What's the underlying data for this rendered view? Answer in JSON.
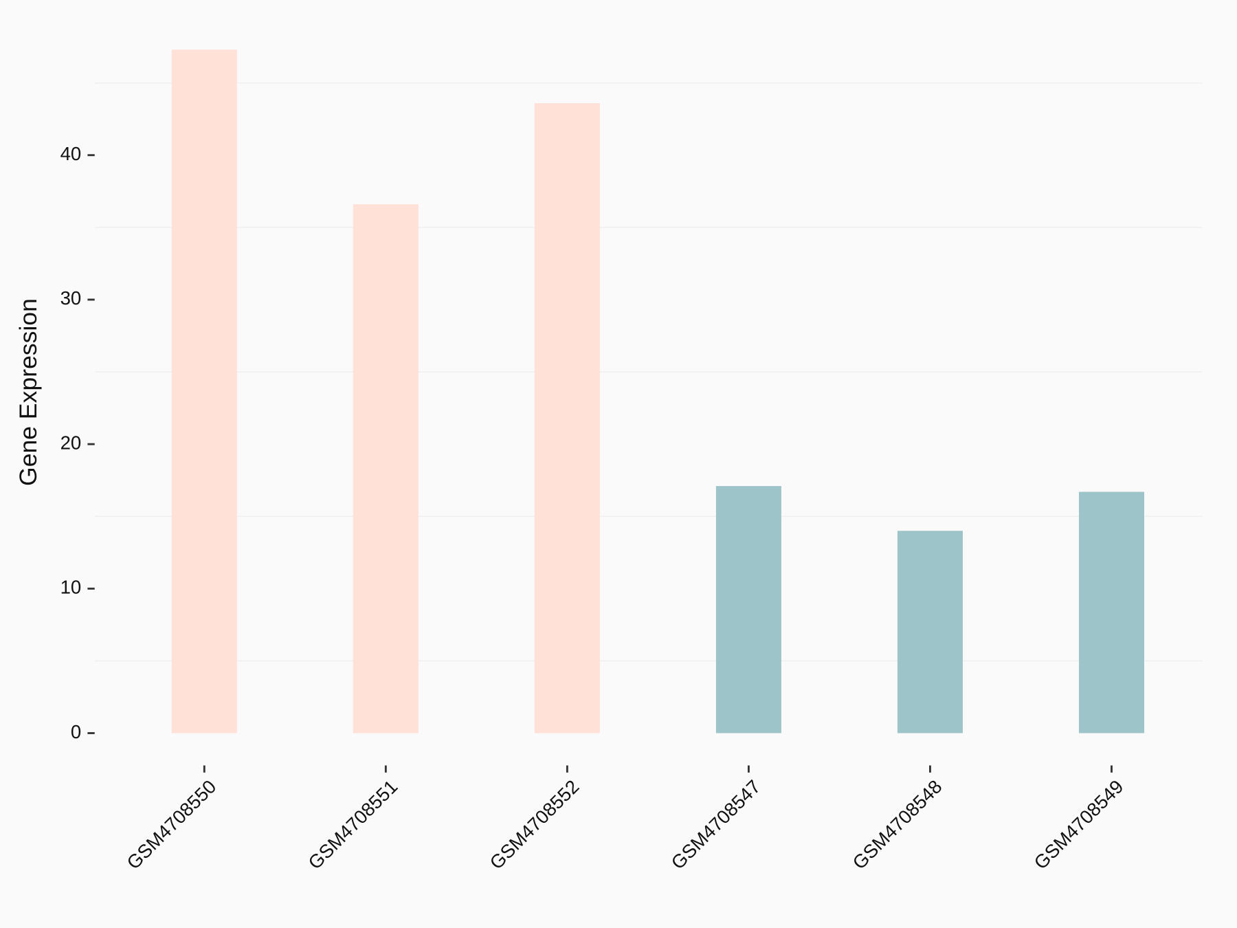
{
  "chart_data": {
    "type": "bar",
    "y_label": "Gene Expression",
    "categories": [
      "GSM4708550",
      "GSM4708551",
      "GSM4708552",
      "GSM4708547",
      "GSM4708548",
      "GSM4708549"
    ],
    "values": [
      47.3,
      36.6,
      43.6,
      17.1,
      14.0,
      16.7
    ],
    "colors": [
      "#ffe1d8",
      "#ffe1d8",
      "#ffe1d8",
      "#9dc4c8",
      "#9dc4c8",
      "#9dc4c8"
    ],
    "ylim": [
      -2.4,
      49.7
    ],
    "yticks": [
      0,
      10,
      20,
      30,
      40
    ],
    "minor_yticks": [
      5,
      15,
      25,
      35,
      45
    ],
    "grid": true
  }
}
